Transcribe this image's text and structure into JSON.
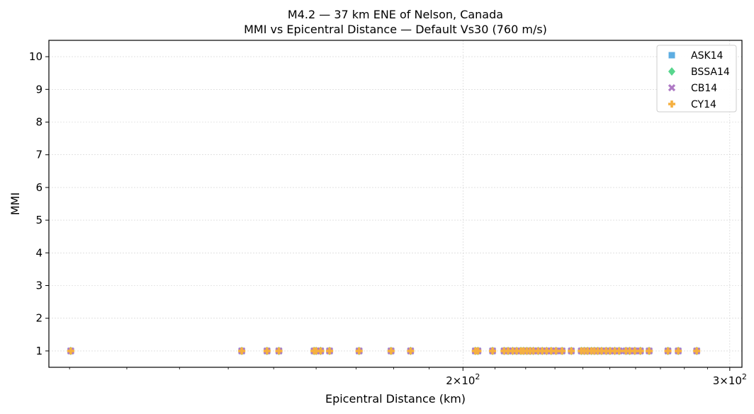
{
  "chart_data": {
    "type": "scatter",
    "title": "M4.2 — 37 km ENE of Nelson, Canada",
    "subtitle": "MMI vs Epicentral Distance — Default Vs30 (760 m/s)",
    "xlabel": "Epicentral Distance (km)",
    "ylabel": "MMI",
    "xscale": "log",
    "xlim": [
      106.6,
      305.6
    ],
    "ylim": [
      0.5,
      10.5
    ],
    "x_ticks": [
      {
        "value": 200,
        "base": "2",
        "exp": "10",
        "expo": "2"
      },
      {
        "value": 300,
        "base": "3",
        "exp": "10",
        "expo": "2"
      }
    ],
    "x_tick_times": "×",
    "y_ticks": [
      "1",
      "2",
      "3",
      "4",
      "5",
      "6",
      "7",
      "8",
      "9",
      "10"
    ],
    "grid": true,
    "legend_position": "top-right",
    "x": [
      110.2,
      142.9,
      148.5,
      151.2,
      159.5,
      160.0,
      161.1,
      163.3,
      170.8,
      179.3,
      184.7,
      203.8,
      204.6,
      209.2,
      212.9,
      214.2,
      215.7,
      217.0,
      218.4,
      219.3,
      220.4,
      221.5,
      222.6,
      224.2,
      225.6,
      227.1,
      228.7,
      230.4,
      232.5,
      235.8,
      239.4,
      240.5,
      241.7,
      243.1,
      244.2,
      245.5,
      246.9,
      248.6,
      250.1,
      251.9,
      253.6,
      256.2,
      257.7,
      259.7,
      261.9,
      265.4,
      273.1,
      277.4,
      285.3
    ],
    "series": [
      {
        "name": "ASK14",
        "marker": "square",
        "color": "#5DADE2",
        "values": [
          1,
          1,
          1,
          1,
          1,
          1,
          1,
          1,
          1,
          1,
          1,
          1,
          1,
          1,
          1,
          1,
          1,
          1,
          1,
          1,
          1,
          1,
          1,
          1,
          1,
          1,
          1,
          1,
          1,
          1,
          1,
          1,
          1,
          1,
          1,
          1,
          1,
          1,
          1,
          1,
          1,
          1,
          1,
          1,
          1,
          1,
          1,
          1,
          1
        ]
      },
      {
        "name": "BSSA14",
        "marker": "diamond",
        "color": "#58D68D",
        "values": [
          1,
          1,
          1,
          1,
          1,
          1,
          1,
          1,
          1,
          1,
          1,
          1,
          1,
          1,
          1,
          1,
          1,
          1,
          1,
          1,
          1,
          1,
          1,
          1,
          1,
          1,
          1,
          1,
          1,
          1,
          1,
          1,
          1,
          1,
          1,
          1,
          1,
          1,
          1,
          1,
          1,
          1,
          1,
          1,
          1,
          1,
          1,
          1,
          1
        ]
      },
      {
        "name": "CB14",
        "marker": "x",
        "color": "#AF7AC5",
        "values": [
          1,
          1,
          1,
          1,
          1,
          1,
          1,
          1,
          1,
          1,
          1,
          1,
          1,
          1,
          1,
          1,
          1,
          1,
          1,
          1,
          1,
          1,
          1,
          1,
          1,
          1,
          1,
          1,
          1,
          1,
          1,
          1,
          1,
          1,
          1,
          1,
          1,
          1,
          1,
          1,
          1,
          1,
          1,
          1,
          1,
          1,
          1,
          1,
          1
        ]
      },
      {
        "name": "CY14",
        "marker": "plus",
        "color": "#F5B041",
        "values": [
          1,
          1,
          1,
          1,
          1,
          1,
          1,
          1,
          1,
          1,
          1,
          1,
          1,
          1,
          1,
          1,
          1,
          1,
          1,
          1,
          1,
          1,
          1,
          1,
          1,
          1,
          1,
          1,
          1,
          1,
          1,
          1,
          1,
          1,
          1,
          1,
          1,
          1,
          1,
          1,
          1,
          1,
          1,
          1,
          1,
          1,
          1,
          1,
          1
        ]
      }
    ]
  }
}
